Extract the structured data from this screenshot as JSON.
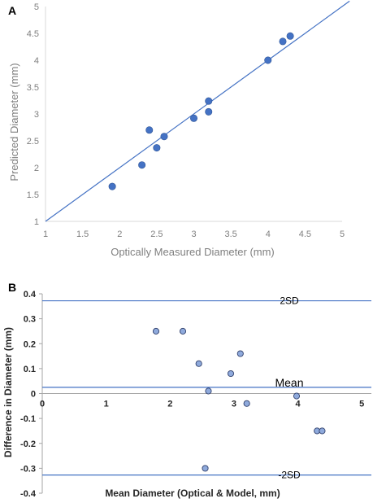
{
  "chart_data": [
    {
      "panel_label": "A",
      "type": "scatter",
      "xlabel": "Optically Measured  Diameter (mm)",
      "ylabel": "Predicted Diameter (mm)",
      "xlim": [
        1,
        5
      ],
      "ylim": [
        1,
        5
      ],
      "xticks": [
        "1",
        "1.5",
        "2",
        "2.5",
        "3",
        "3.5",
        "4",
        "4.5",
        "5"
      ],
      "yticks": [
        "1",
        "1.5",
        "2",
        "2.5",
        "3",
        "3.5",
        "4",
        "4.5",
        "5"
      ],
      "grid": false,
      "identity_line": {
        "from": [
          1,
          1
        ],
        "to": [
          5.1,
          5.1
        ]
      },
      "points": [
        {
          "x": 1.9,
          "y": 1.65
        },
        {
          "x": 2.3,
          "y": 2.05
        },
        {
          "x": 2.4,
          "y": 2.7
        },
        {
          "x": 2.5,
          "y": 2.37
        },
        {
          "x": 2.6,
          "y": 2.58
        },
        {
          "x": 3.0,
          "y": 2.92
        },
        {
          "x": 3.2,
          "y": 3.04
        },
        {
          "x": 3.2,
          "y": 3.24
        },
        {
          "x": 4.0,
          "y": 4.0
        },
        {
          "x": 4.2,
          "y": 4.35
        },
        {
          "x": 4.3,
          "y": 4.45
        }
      ]
    },
    {
      "panel_label": "B",
      "type": "scatter",
      "xlabel": "Mean Diameter (Optical & Model, mm)",
      "ylabel": "Difference in  Diameter (mm)",
      "xlim": [
        0,
        5.15
      ],
      "ylim": [
        -0.4,
        0.4
      ],
      "xticks": [
        "0",
        "1",
        "2",
        "3",
        "4",
        "5"
      ],
      "yticks": [
        "0.4",
        "0.3",
        "0.2",
        "0.1",
        "0",
        "-0.1",
        "-0.2",
        "-0.3",
        "-0.4"
      ],
      "grid": false,
      "reference_lines": [
        {
          "label": "2SD",
          "y": 0.372
        },
        {
          "label": "Mean",
          "y": 0.025
        },
        {
          "label": "-2SD",
          "y": -0.327
        }
      ],
      "points": [
        {
          "x": 1.78,
          "y": 0.25
        },
        {
          "x": 2.2,
          "y": 0.25
        },
        {
          "x": 2.45,
          "y": 0.12
        },
        {
          "x": 2.6,
          "y": 0.01
        },
        {
          "x": 2.95,
          "y": 0.08
        },
        {
          "x": 3.1,
          "y": 0.16
        },
        {
          "x": 3.2,
          "y": -0.04
        },
        {
          "x": 3.98,
          "y": -0.01
        },
        {
          "x": 4.3,
          "y": -0.15
        },
        {
          "x": 4.38,
          "y": -0.15
        },
        {
          "x": 2.55,
          "y": -0.3
        }
      ]
    }
  ]
}
